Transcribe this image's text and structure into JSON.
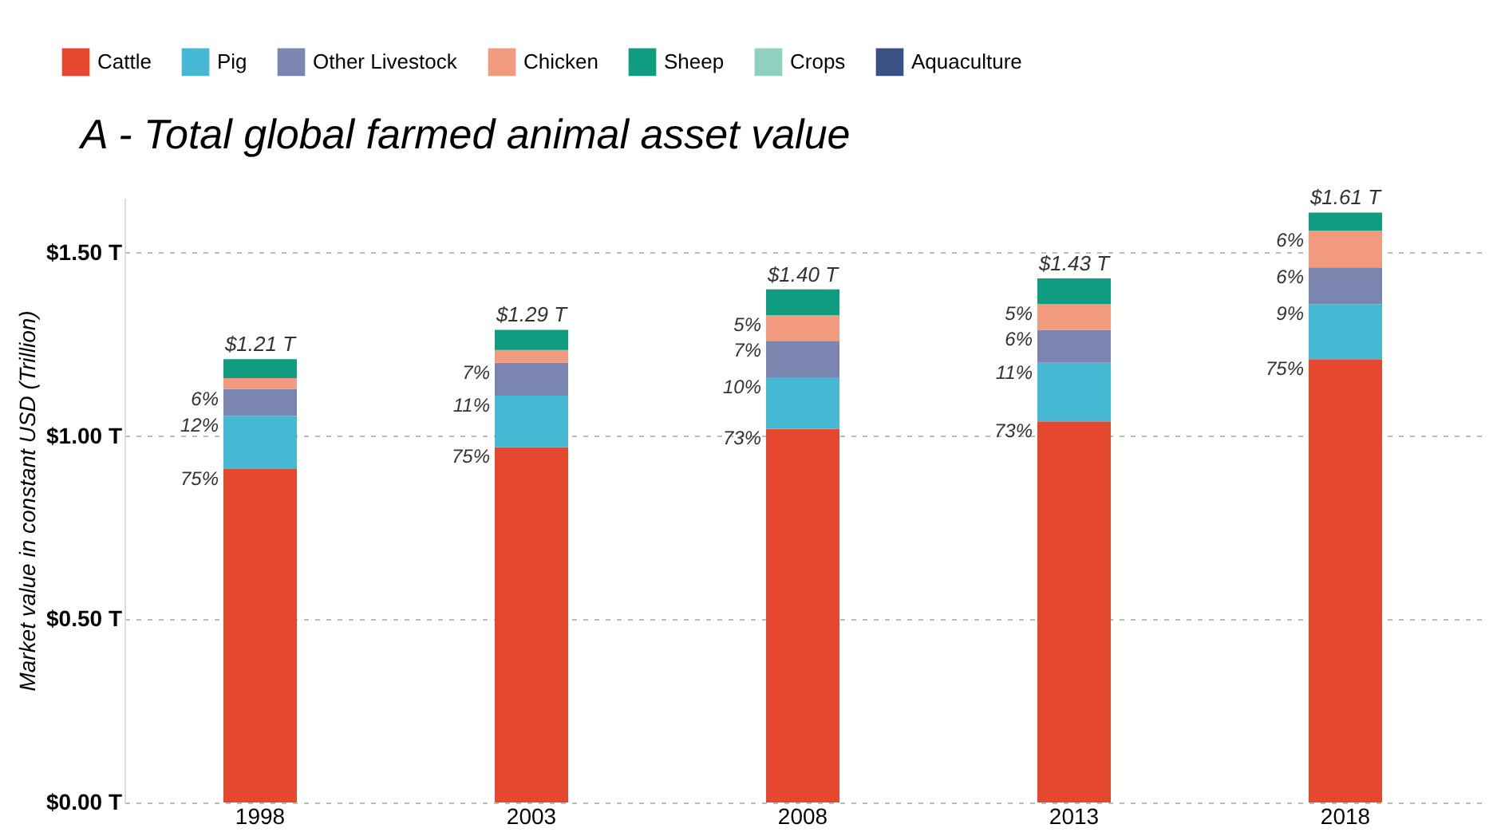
{
  "chart_data": {
    "type": "bar",
    "stacked": true,
    "title": "A - Total global farmed animal asset value",
    "ylabel": "Market value in constant USD (Trillion)",
    "categories": [
      "1998",
      "2003",
      "2008",
      "2013",
      "2018"
    ],
    "series": [
      {
        "name": "Cattle",
        "color": "#e5482f",
        "values": [
          0.91,
          0.97,
          1.02,
          1.04,
          1.21
        ]
      },
      {
        "name": "Pig",
        "color": "#45b8d4",
        "values": [
          0.145,
          0.14,
          0.14,
          0.16,
          0.15
        ]
      },
      {
        "name": "Other Livestock",
        "color": "#7b86b0",
        "values": [
          0.073,
          0.09,
          0.1,
          0.09,
          0.1
        ]
      },
      {
        "name": "Chicken",
        "color": "#f19a7e",
        "values": [
          0.03,
          0.035,
          0.07,
          0.07,
          0.1
        ]
      },
      {
        "name": "Sheep",
        "color": "#0f9c80",
        "values": [
          0.052,
          0.055,
          0.07,
          0.07,
          0.05
        ]
      },
      {
        "name": "Crops",
        "color": "#8ed1c0",
        "values": [
          0,
          0,
          0,
          0,
          0
        ]
      },
      {
        "name": "Aquaculture",
        "color": "#3a5185",
        "values": [
          0,
          0,
          0,
          0,
          0
        ]
      }
    ],
    "annotations": [
      {
        "text": "75%",
        "x": "1998",
        "y": 0.91
      },
      {
        "text": "12%",
        "x": "1998",
        "y": 1.055
      },
      {
        "text": "6%",
        "x": "1998",
        "y": 1.128
      },
      {
        "text": "75%",
        "x": "2003",
        "y": 0.97
      },
      {
        "text": "11%",
        "x": "2003",
        "y": 1.11
      },
      {
        "text": "7%",
        "x": "2003",
        "y": 1.2
      },
      {
        "text": "73%",
        "x": "2008",
        "y": 1.02
      },
      {
        "text": "10%",
        "x": "2008",
        "y": 1.16
      },
      {
        "text": "7%",
        "x": "2008",
        "y": 1.26
      },
      {
        "text": "5%",
        "x": "2008",
        "y": 1.33
      },
      {
        "text": "73%",
        "x": "2013",
        "y": 1.04
      },
      {
        "text": "11%",
        "x": "2013",
        "y": 1.2
      },
      {
        "text": "6%",
        "x": "2013",
        "y": 1.29
      },
      {
        "text": "5%",
        "x": "2013",
        "y": 1.36
      },
      {
        "text": "75%",
        "x": "2018",
        "y": 1.21
      },
      {
        "text": "9%",
        "x": "2018",
        "y": 1.36
      },
      {
        "text": "6%",
        "x": "2018",
        "y": 1.46
      },
      {
        "text": "6%",
        "x": "2018",
        "y": 1.56
      }
    ],
    "totals": [
      "$1.21 T",
      "$1.29 T",
      "$1.40 T",
      "$1.43 T",
      "$1.61 T"
    ],
    "ylim": [
      0,
      1.65
    ],
    "yticks": [
      {
        "value": 0,
        "label": "$0.00 T"
      },
      {
        "value": 0.5,
        "label": "$0.50 T"
      },
      {
        "value": 1.0,
        "label": "$1.00 T"
      },
      {
        "value": 1.5,
        "label": "$1.50 T"
      }
    ],
    "grid": "y",
    "legend": "top"
  }
}
